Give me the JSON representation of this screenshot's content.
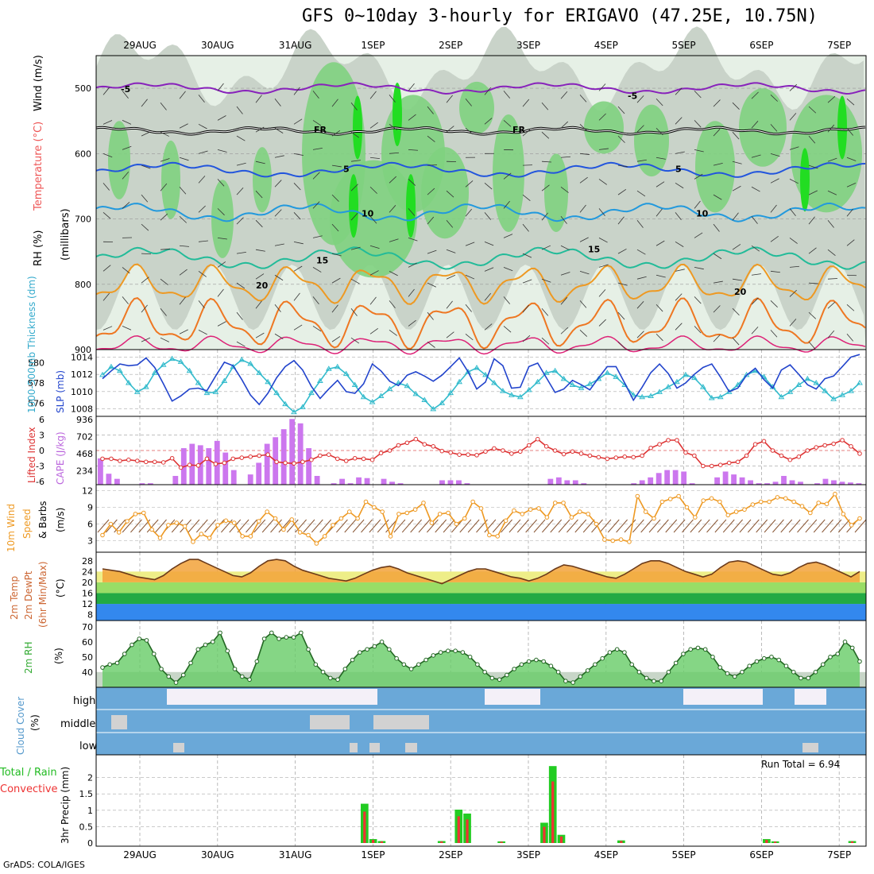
{
  "title": "GFS 0~10day 3-hourly for ERIGAVO (47.25E, 10.75N)",
  "credit": "GrADS: COLA/IGES",
  "dates": [
    "29AUG",
    "30AUG",
    "31AUG",
    "1SEP",
    "2SEP",
    "3SEP",
    "4SEP",
    "5SEP",
    "6SEP",
    "7SEP"
  ],
  "colors": {
    "rh_light": "#e6f0e6",
    "rh_grey": "#c9d3c9",
    "rh_mid": "#7fd27f",
    "rh_bright": "#22dd22",
    "thickness": "#33bbcc",
    "slp": "#2244cc",
    "lifted": "#dd3333",
    "cape": "#cc77ee",
    "wind10": "#ee9922",
    "barb10": "#885533",
    "rh2m": "#66cc66",
    "cloud_blue": "#6aa8d8",
    "cloud_white": "#f4f0f8",
    "cloud_grey": "#d2d2d2",
    "rain_green": "#22cc22",
    "rain_red": "#ee3333"
  },
  "panels": {
    "upper": {
      "ylabel_rh": "RH (%)",
      "ylabel_temp": "Temperature (°C)",
      "ylabel_wind": "Wind (m/s)",
      "ylabel_p": "(millibars)",
      "yticks": [
        "500",
        "600",
        "700",
        "800",
        "900"
      ],
      "contour_labels": [
        "-5",
        "-5",
        "FR",
        "FR",
        "5",
        "5",
        "10",
        "10",
        "15",
        "15",
        "20",
        "20"
      ]
    },
    "thickness_slp": {
      "ylabel_left": "1000-500mb Thickness (dm)",
      "ylabel_right": "SLP (mb)",
      "yticks_left": [
        "580",
        "578",
        "576"
      ],
      "yticks_right": [
        "1014",
        "1012",
        "1010",
        "1008"
      ]
    },
    "lifted_cape": {
      "ylabel_left": "Lifted Index",
      "ylabel_right": "CAPE (J/kg)",
      "yticks_left": [
        "-6",
        "-3",
        "0",
        "3",
        "6"
      ],
      "yticks_right": [
        "936",
        "702",
        "468",
        "234"
      ]
    },
    "wind10m": {
      "ylabel_a": "10m Wind",
      "ylabel_b": "Speed",
      "ylabel_c": "& Barbs",
      "ylabel_unit": "(m/s)",
      "yticks": [
        "12",
        "9",
        "6",
        "3"
      ]
    },
    "temp2m": {
      "ylabel_a": "2m Temp",
      "ylabel_b": "2m DewPt",
      "ylabel_c": "(6hr Min/Max)",
      "ylabel_unit": "(°C)",
      "yticks": [
        "28",
        "24",
        "20",
        "16",
        "12",
        "8"
      ]
    },
    "rh2m": {
      "ylabel": "2m RH",
      "ylabel_unit": "(%)",
      "yticks": [
        "70",
        "60",
        "50",
        "40"
      ]
    },
    "cloud": {
      "ylabel": "Cloud Cover",
      "ylabel_unit": "(%)",
      "levels": [
        "high",
        "middle",
        "low"
      ]
    },
    "precip": {
      "ylabel_a": "Total / Rain",
      "ylabel_b": "Convective",
      "ylabel_c": "3hr Precip (mm)",
      "yticks": [
        "2",
        "1.5",
        "1",
        "0.5",
        "0"
      ],
      "run_total": "Run Total = 6.94"
    }
  },
  "chart_data": [
    {
      "type": "line",
      "name": "thickness",
      "x_step_hours": 3,
      "values": [
        578.8,
        579.6,
        579.2,
        578.0,
        577.1,
        577.6,
        579.0,
        579.8,
        580.4,
        580.1,
        579.2,
        578.0,
        577.0,
        577.1,
        578.2,
        579.6,
        580.3,
        579.9,
        579.0,
        578.1,
        577.0,
        575.9,
        575.1,
        575.6,
        577.0,
        578.2,
        579.4,
        579.6,
        578.9,
        577.8,
        576.6,
        576.1,
        576.7,
        577.4,
        578.0,
        577.7,
        576.9,
        576.3,
        575.4,
        576.0,
        577.0,
        578.1,
        579.1,
        579.5,
        578.8,
        578.0,
        577.2,
        576.8,
        576.6,
        577.3,
        578.1,
        579.0,
        579.2,
        578.4,
        577.8,
        577.5,
        577.9,
        578.4,
        579.0,
        578.6,
        577.8,
        576.8,
        576.6,
        576.7,
        577.1,
        577.6,
        578.1,
        578.8,
        578.5,
        577.6,
        576.5,
        576.6,
        577.1,
        577.8,
        578.8,
        579.2,
        578.6,
        577.6,
        576.6,
        577.1,
        577.8,
        578.4,
        578.0,
        577.2,
        576.4,
        576.8,
        577.2,
        578.0
      ],
      "ylim": [
        575,
        581
      ]
    },
    {
      "type": "line",
      "name": "slp",
      "values": [
        1011.5,
        1012.4,
        1013.2,
        1013.0,
        1013.1,
        1013.9,
        1012.8,
        1010.9,
        1008.9,
        1009.5,
        1010.3,
        1010.4,
        1010.1,
        1011.8,
        1013.4,
        1013.0,
        1011.4,
        1009.6,
        1008.5,
        1009.8,
        1011.6,
        1012.9,
        1013.6,
        1012.5,
        1010.6,
        1009.2,
        1010.3,
        1011.3,
        1010.0,
        1009.8,
        1010.9,
        1013.2,
        1012.4,
        1011.2,
        1010.7,
        1011.9,
        1012.3,
        1011.8,
        1011.2,
        1011.9,
        1012.9,
        1013.9,
        1012.3,
        1010.3,
        1011.1,
        1013.8,
        1013.0,
        1010.4,
        1010.5,
        1012.9,
        1013.3,
        1011.6,
        1009.9,
        1010.3,
        1011.3,
        1010.8,
        1010.2,
        1011.6,
        1012.9,
        1012.9,
        1011.0,
        1009.0,
        1010.5,
        1012.2,
        1013.2,
        1012.1,
        1010.4,
        1011.0,
        1012.0,
        1012.8,
        1013.2,
        1011.7,
        1010.0,
        1010.4,
        1011.9,
        1012.7,
        1011.4,
        1010.4,
        1012.5,
        1013.1,
        1012.0,
        1010.8,
        1010.3,
        1011.5,
        1011.8,
        1012.9,
        1014.0,
        1014.3
      ],
      "ylim": [
        1007.5,
        1014.5
      ]
    },
    {
      "type": "line",
      "name": "lifted_index",
      "values": [
        -1.6,
        -1.6,
        -2.0,
        -1.8,
        -2.0,
        -2.2,
        -2.2,
        -2.3,
        -1.5,
        -3.3,
        -2.8,
        -2.9,
        -1.6,
        -2.6,
        -2.4,
        -1.6,
        -1.4,
        -1.2,
        -1.0,
        -0.8,
        -2.2,
        -2.4,
        -2.5,
        -2.2,
        -1.8,
        -1.0,
        -0.8,
        -1.6,
        -2.0,
        -1.5,
        -1.6,
        -1.8,
        -0.5,
        0.0,
        1.0,
        1.5,
        2.2,
        1.2,
        0.8,
        -0.1,
        -0.4,
        -0.8,
        -0.8,
        -0.9,
        -0.2,
        0.4,
        0.0,
        -0.6,
        -0.2,
        1.0,
        2.2,
        0.8,
        0.0,
        -0.7,
        -0.2,
        -0.6,
        -1.0,
        -1.3,
        -1.6,
        -1.4,
        -1.2,
        -1.3,
        -1.0,
        0.5,
        1.2,
        2.0,
        2.0,
        -0.4,
        -1.0,
        -3.0,
        -3.0,
        -2.8,
        -2.4,
        -2.2,
        -1.0,
        1.2,
        1.8,
        0.0,
        -1.0,
        -1.8,
        -1.2,
        0.0,
        0.6,
        1.0,
        1.3,
        2.0,
        0.8,
        -0.6
      ],
      "ylim": [
        6,
        -6
      ]
    },
    {
      "type": "bar",
      "name": "cape",
      "values": [
        360,
        150,
        80,
        0,
        0,
        20,
        20,
        0,
        0,
        120,
        500,
        560,
        540,
        500,
        600,
        440,
        200,
        0,
        140,
        300,
        560,
        650,
        760,
        900,
        840,
        500,
        120,
        0,
        20,
        80,
        20,
        100,
        90,
        0,
        80,
        40,
        20,
        0,
        0,
        0,
        0,
        60,
        60,
        60,
        20,
        0,
        0,
        0,
        0,
        0,
        0,
        0,
        0,
        0,
        80,
        100,
        60,
        60,
        20,
        0,
        0,
        0,
        0,
        0,
        20,
        60,
        100,
        160,
        200,
        200,
        180,
        20,
        0,
        0,
        100,
        180,
        140,
        100,
        60,
        20,
        20,
        40,
        120,
        60,
        40,
        0,
        20,
        80,
        60,
        40,
        30,
        20
      ],
      "ylim": [
        0,
        936
      ]
    },
    {
      "type": "line",
      "name": "wind10m_speed",
      "values": [
        4.0,
        6.0,
        4.5,
        6.5,
        7.8,
        8.0,
        5.0,
        3.5,
        5.8,
        6.2,
        5.6,
        2.8,
        4.2,
        3.5,
        5.8,
        6.6,
        6.2,
        3.8,
        3.8,
        6.5,
        8.2,
        7.0,
        5.0,
        6.8,
        4.5,
        4.0,
        2.5,
        3.8,
        5.8,
        7.0,
        8.2,
        7.0,
        10.0,
        9.0,
        8.2,
        3.8,
        7.8,
        8.0,
        8.6,
        9.8,
        6.2,
        7.8,
        8.0,
        6.0,
        7.0,
        10.0,
        8.8,
        4.0,
        3.8,
        6.6,
        8.4,
        7.8,
        8.6,
        8.8,
        7.2,
        9.8,
        9.8,
        7.2,
        8.2,
        7.8,
        6.0,
        3.2,
        3.0,
        3.2,
        2.8,
        11.0,
        8.2,
        7.0,
        10.0,
        10.5,
        11.0,
        9.0,
        7.2,
        10.2,
        10.6,
        10.0,
        7.6,
        8.2,
        8.6,
        9.5,
        10.0,
        10.0,
        10.8,
        10.6,
        10.0,
        9.2,
        8.0,
        9.8,
        9.6,
        11.4,
        7.8,
        5.8,
        7.0
      ],
      "ylim": [
        1.5,
        12.5
      ]
    },
    {
      "type": "area",
      "name": "temp2m",
      "values": [
        25,
        24.5,
        24,
        23,
        22,
        21.5,
        21,
        22.5,
        25,
        27,
        28.5,
        28.5,
        27,
        25.5,
        24,
        22.5,
        22,
        23.5,
        26,
        28,
        28.5,
        28,
        26,
        24.5,
        23.5,
        22.5,
        21.5,
        21,
        20.5,
        21.5,
        23,
        24.5,
        25.5,
        26,
        25,
        23.5,
        22.5,
        21.5,
        20.5,
        19.5,
        21,
        22.5,
        24,
        25,
        25,
        24,
        23,
        22,
        21.5,
        20.5,
        21.5,
        23,
        25,
        26.5,
        26,
        25,
        24,
        23,
        22,
        21.5,
        23,
        25,
        27,
        28,
        28,
        27,
        25.5,
        24,
        23,
        22,
        23,
        25.5,
        27.5,
        28,
        27.5,
        26,
        24.5,
        23,
        22.5,
        23.5,
        25.5,
        27,
        27.5,
        26.5,
        25,
        23.5,
        22,
        24
      ],
      "ylim": [
        7,
        30
      ]
    },
    {
      "type": "area",
      "name": "rh2m",
      "values": [
        43,
        45,
        46,
        52,
        58,
        62,
        61,
        52,
        42,
        37,
        33,
        38,
        46,
        55,
        58,
        60,
        66,
        54,
        42,
        37,
        35,
        47,
        62,
        66,
        62,
        63,
        63,
        66,
        55,
        45,
        40,
        36,
        35,
        42,
        48,
        53,
        55,
        57,
        60,
        55,
        49,
        45,
        42,
        45,
        48,
        51,
        53,
        54,
        54,
        53,
        50,
        45,
        40,
        36,
        35,
        38,
        42,
        45,
        47,
        48,
        47,
        44,
        40,
        34,
        33,
        37,
        41,
        45,
        49,
        53,
        55,
        53,
        45,
        40,
        36,
        34,
        34,
        40,
        46,
        52,
        55,
        56,
        55,
        50,
        43,
        39,
        37,
        40,
        44,
        47,
        49,
        50,
        48,
        44,
        40,
        36,
        36,
        40,
        45,
        50,
        52,
        60,
        56,
        47
      ],
      "ylim": [
        32,
        72
      ]
    },
    {
      "type": "bar",
      "name": "precip_total",
      "bars": [
        [
          1.2,
          30
        ],
        [
          0.12,
          31
        ],
        [
          0.06,
          32
        ],
        [
          0.06,
          39
        ],
        [
          1.02,
          41
        ],
        [
          0.9,
          42
        ],
        [
          0.05,
          46
        ],
        [
          0.62,
          51
        ],
        [
          2.35,
          52
        ],
        [
          0.25,
          53
        ],
        [
          0.08,
          60
        ],
        [
          0.12,
          77
        ],
        [
          0.05,
          78
        ],
        [
          0.06,
          87
        ],
        [
          0.06,
          110
        ]
      ],
      "ylim": [
        0,
        2.5
      ]
    }
  ]
}
